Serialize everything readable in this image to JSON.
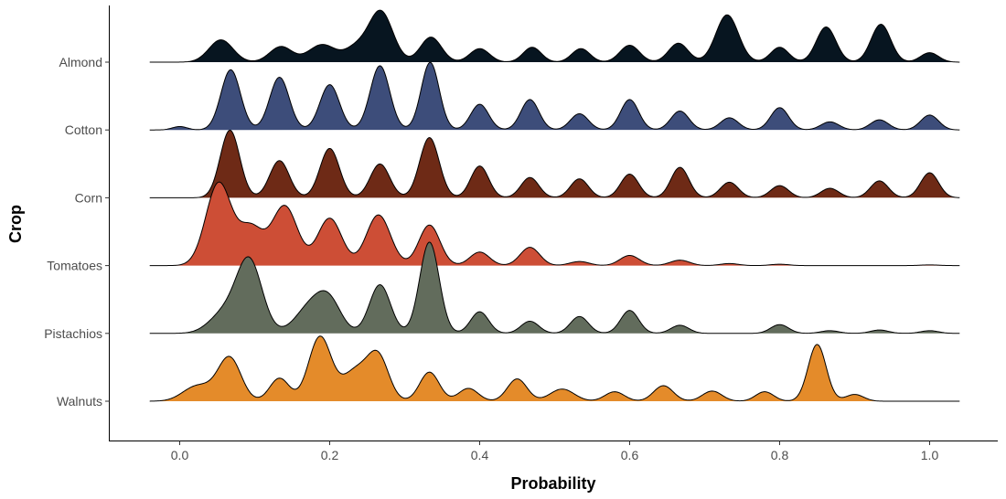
{
  "chart_data": {
    "type": "ridgeline",
    "xlabel": "Probability",
    "ylabel": "Crop",
    "xlim": [
      -0.09,
      1.09
    ],
    "x_ticks": [
      0.0,
      0.2,
      0.4,
      0.6,
      0.8,
      1.0
    ],
    "x_tick_labels": [
      "0.0",
      "0.2",
      "0.4",
      "0.6",
      "0.8",
      "1.0"
    ],
    "x_range": [
      -0.04,
      1.04
    ],
    "grid": false,
    "legend": "none",
    "series": [
      {
        "name": "Almond",
        "color": "#071520",
        "peaks": [
          {
            "x": 0.055,
            "h": 0.33,
            "w": 0.016
          },
          {
            "x": 0.135,
            "h": 0.23,
            "w": 0.015
          },
          {
            "x": 0.19,
            "h": 0.26,
            "w": 0.018
          },
          {
            "x": 0.235,
            "h": 0.2,
            "w": 0.015
          },
          {
            "x": 0.268,
            "h": 0.75,
            "w": 0.016
          },
          {
            "x": 0.335,
            "h": 0.37,
            "w": 0.014
          },
          {
            "x": 0.4,
            "h": 0.2,
            "w": 0.013
          },
          {
            "x": 0.47,
            "h": 0.22,
            "w": 0.012
          },
          {
            "x": 0.535,
            "h": 0.2,
            "w": 0.012
          },
          {
            "x": 0.6,
            "h": 0.25,
            "w": 0.013
          },
          {
            "x": 0.665,
            "h": 0.28,
            "w": 0.013
          },
          {
            "x": 0.73,
            "h": 0.7,
            "w": 0.015
          },
          {
            "x": 0.8,
            "h": 0.22,
            "w": 0.012
          },
          {
            "x": 0.862,
            "h": 0.52,
            "w": 0.013
          },
          {
            "x": 0.935,
            "h": 0.56,
            "w": 0.013
          },
          {
            "x": 1.0,
            "h": 0.14,
            "w": 0.012
          }
        ]
      },
      {
        "name": "Cotton",
        "color": "#3d4d7a",
        "peaks": [
          {
            "x": 0.0,
            "h": 0.05,
            "w": 0.01
          },
          {
            "x": 0.068,
            "h": 0.89,
            "w": 0.013
          },
          {
            "x": 0.133,
            "h": 0.78,
            "w": 0.013
          },
          {
            "x": 0.2,
            "h": 0.67,
            "w": 0.013
          },
          {
            "x": 0.267,
            "h": 0.95,
            "w": 0.013
          },
          {
            "x": 0.334,
            "h": 1.0,
            "w": 0.012
          },
          {
            "x": 0.4,
            "h": 0.38,
            "w": 0.012
          },
          {
            "x": 0.467,
            "h": 0.45,
            "w": 0.012
          },
          {
            "x": 0.533,
            "h": 0.24,
            "w": 0.012
          },
          {
            "x": 0.6,
            "h": 0.45,
            "w": 0.012
          },
          {
            "x": 0.667,
            "h": 0.28,
            "w": 0.012
          },
          {
            "x": 0.733,
            "h": 0.18,
            "w": 0.012
          },
          {
            "x": 0.8,
            "h": 0.33,
            "w": 0.012
          },
          {
            "x": 0.867,
            "h": 0.12,
            "w": 0.012
          },
          {
            "x": 0.933,
            "h": 0.15,
            "w": 0.012
          },
          {
            "x": 1.0,
            "h": 0.22,
            "w": 0.012
          }
        ]
      },
      {
        "name": "Corn",
        "color": "#6e2a16",
        "peaks": [
          {
            "x": 0.067,
            "h": 1.0,
            "w": 0.013
          },
          {
            "x": 0.133,
            "h": 0.55,
            "w": 0.013
          },
          {
            "x": 0.2,
            "h": 0.73,
            "w": 0.013
          },
          {
            "x": 0.267,
            "h": 0.5,
            "w": 0.013
          },
          {
            "x": 0.333,
            "h": 0.89,
            "w": 0.013
          },
          {
            "x": 0.4,
            "h": 0.47,
            "w": 0.012
          },
          {
            "x": 0.467,
            "h": 0.3,
            "w": 0.012
          },
          {
            "x": 0.533,
            "h": 0.28,
            "w": 0.012
          },
          {
            "x": 0.6,
            "h": 0.35,
            "w": 0.012
          },
          {
            "x": 0.667,
            "h": 0.45,
            "w": 0.012
          },
          {
            "x": 0.733,
            "h": 0.23,
            "w": 0.012
          },
          {
            "x": 0.8,
            "h": 0.18,
            "w": 0.012
          },
          {
            "x": 0.867,
            "h": 0.14,
            "w": 0.012
          },
          {
            "x": 0.933,
            "h": 0.25,
            "w": 0.012
          },
          {
            "x": 1.0,
            "h": 0.37,
            "w": 0.012
          }
        ]
      },
      {
        "name": "Tomatoes",
        "color": "#cd4e36",
        "peaks": [
          {
            "x": 0.052,
            "h": 1.22,
            "w": 0.017
          },
          {
            "x": 0.095,
            "h": 0.55,
            "w": 0.016
          },
          {
            "x": 0.14,
            "h": 0.88,
            "w": 0.017
          },
          {
            "x": 0.2,
            "h": 0.7,
            "w": 0.016
          },
          {
            "x": 0.265,
            "h": 0.75,
            "w": 0.016
          },
          {
            "x": 0.333,
            "h": 0.6,
            "w": 0.014
          },
          {
            "x": 0.4,
            "h": 0.2,
            "w": 0.013
          },
          {
            "x": 0.467,
            "h": 0.27,
            "w": 0.013
          },
          {
            "x": 0.533,
            "h": 0.06,
            "w": 0.013
          },
          {
            "x": 0.6,
            "h": 0.15,
            "w": 0.013
          },
          {
            "x": 0.667,
            "h": 0.08,
            "w": 0.013
          },
          {
            "x": 0.733,
            "h": 0.03,
            "w": 0.012
          },
          {
            "x": 0.8,
            "h": 0.02,
            "w": 0.012
          },
          {
            "x": 1.0,
            "h": 0.01,
            "w": 0.012
          }
        ]
      },
      {
        "name": "Pistachios",
        "color": "#626c5c",
        "peaks": [
          {
            "x": 0.06,
            "h": 0.3,
            "w": 0.02
          },
          {
            "x": 0.093,
            "h": 1.05,
            "w": 0.017
          },
          {
            "x": 0.175,
            "h": 0.4,
            "w": 0.02
          },
          {
            "x": 0.2,
            "h": 0.4,
            "w": 0.016
          },
          {
            "x": 0.267,
            "h": 0.72,
            "w": 0.014
          },
          {
            "x": 0.333,
            "h": 1.35,
            "w": 0.013
          },
          {
            "x": 0.4,
            "h": 0.32,
            "w": 0.012
          },
          {
            "x": 0.467,
            "h": 0.18,
            "w": 0.012
          },
          {
            "x": 0.533,
            "h": 0.25,
            "w": 0.012
          },
          {
            "x": 0.6,
            "h": 0.34,
            "w": 0.012
          },
          {
            "x": 0.667,
            "h": 0.12,
            "w": 0.012
          },
          {
            "x": 0.8,
            "h": 0.13,
            "w": 0.012
          },
          {
            "x": 0.867,
            "h": 0.04,
            "w": 0.012
          },
          {
            "x": 0.933,
            "h": 0.05,
            "w": 0.012
          },
          {
            "x": 1.0,
            "h": 0.04,
            "w": 0.012
          }
        ]
      },
      {
        "name": "Walnuts",
        "color": "#e48b2a",
        "peaks": [
          {
            "x": 0.02,
            "h": 0.18,
            "w": 0.018
          },
          {
            "x": 0.045,
            "h": 0.1,
            "w": 0.02
          },
          {
            "x": 0.067,
            "h": 0.6,
            "w": 0.015
          },
          {
            "x": 0.133,
            "h": 0.34,
            "w": 0.013
          },
          {
            "x": 0.187,
            "h": 0.95,
            "w": 0.015
          },
          {
            "x": 0.235,
            "h": 0.45,
            "w": 0.018
          },
          {
            "x": 0.265,
            "h": 0.62,
            "w": 0.014
          },
          {
            "x": 0.333,
            "h": 0.43,
            "w": 0.013
          },
          {
            "x": 0.385,
            "h": 0.19,
            "w": 0.013
          },
          {
            "x": 0.45,
            "h": 0.33,
            "w": 0.013
          },
          {
            "x": 0.51,
            "h": 0.18,
            "w": 0.016
          },
          {
            "x": 0.58,
            "h": 0.14,
            "w": 0.013
          },
          {
            "x": 0.645,
            "h": 0.23,
            "w": 0.013
          },
          {
            "x": 0.71,
            "h": 0.15,
            "w": 0.013
          },
          {
            "x": 0.78,
            "h": 0.14,
            "w": 0.012
          },
          {
            "x": 0.85,
            "h": 0.84,
            "w": 0.012
          },
          {
            "x": 0.9,
            "h": 0.1,
            "w": 0.012
          }
        ]
      }
    ]
  }
}
